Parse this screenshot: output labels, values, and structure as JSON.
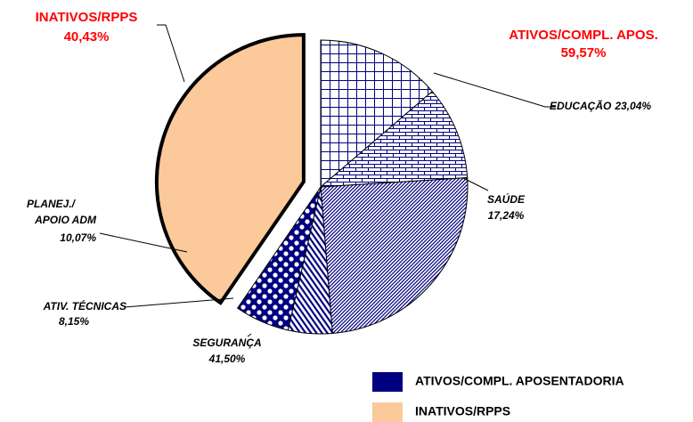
{
  "chart_data": {
    "type": "pie",
    "categories": [
      "ATIVOS/COMPL. APOS.",
      "INATIVOS/RPPS"
    ],
    "values": [
      59.57,
      40.43
    ],
    "value_labels": [
      "59,57%",
      "40,43%"
    ],
    "colors": [
      "#000080",
      "#fcc99a"
    ],
    "breakdown": {
      "categories": [
        "EDUCAÇÃO",
        "SAÚDE",
        "SEGURANÇA",
        "ATIV. TÉCNICAS",
        "PLANEJ./APOIO ADM"
      ],
      "values": [
        23.04,
        17.24,
        41.5,
        8.15,
        10.07
      ],
      "value_labels": [
        "23,04%",
        "17,24%",
        "41,50%",
        "8,15%",
        "10,07%"
      ]
    },
    "legend": [
      "ATIVOS/COMPL. APOSENTADORIA",
      "INATIVOS/RPPS"
    ]
  }
}
